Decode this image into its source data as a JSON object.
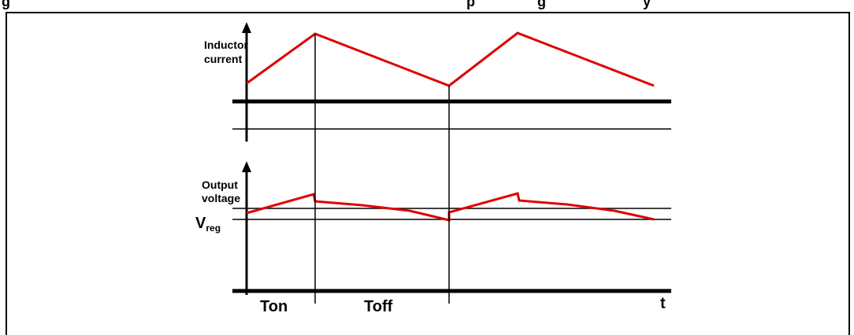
{
  "header": {
    "caption_fragment": "g",
    "caption_fragment2": "p",
    "caption_fragment3": "g",
    "caption_fragment4": "y"
  },
  "plot_top": {
    "ylabel_line1": "Inductor",
    "ylabel_line2": "current"
  },
  "plot_bottom": {
    "ylabel_line1": "Output",
    "ylabel_line2": "voltage",
    "reference_label": "V",
    "reference_subscript": "reg"
  },
  "time_axis": {
    "label": "t",
    "intervals": [
      "Ton",
      "Toff"
    ]
  },
  "colors": {
    "waveform": "#e00000",
    "axis": "#000000"
  }
}
